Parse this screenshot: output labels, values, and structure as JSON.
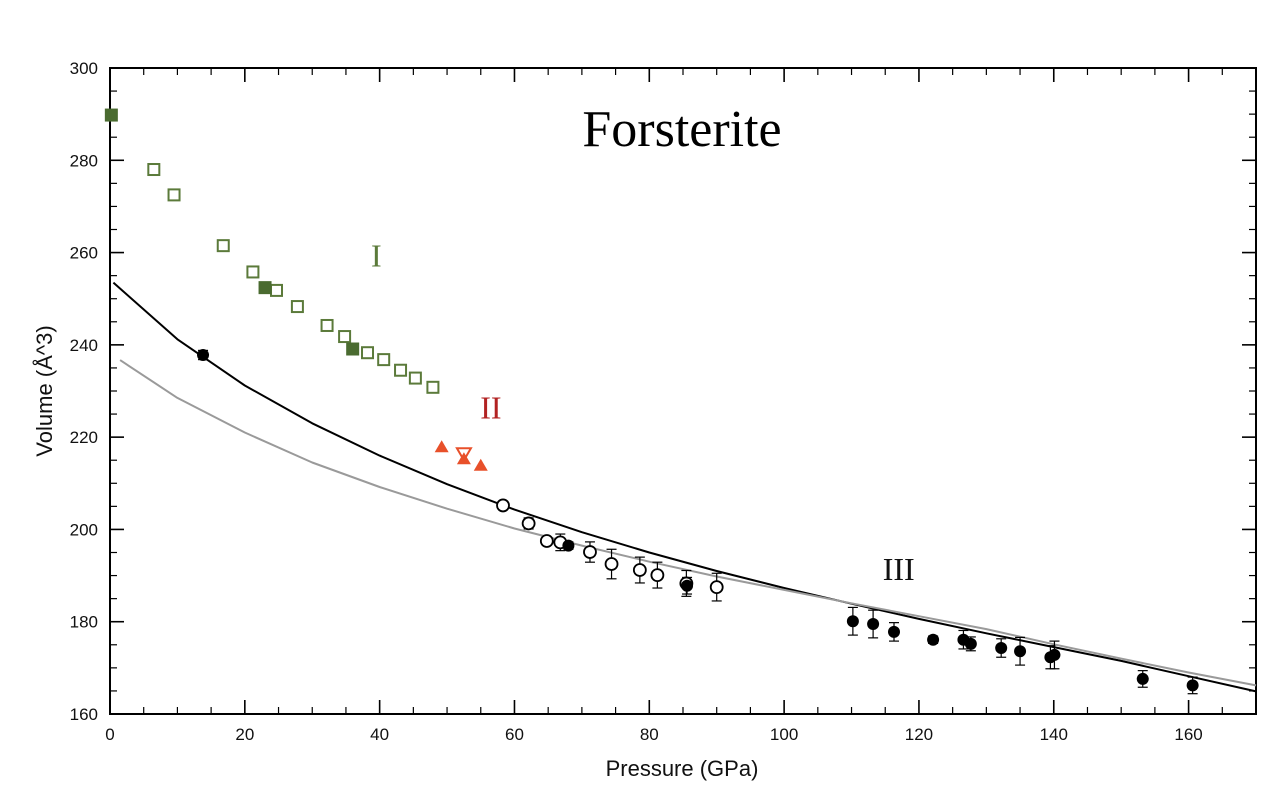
{
  "chart_data": {
    "type": "scatter",
    "title": "Forsterite",
    "xlabel": "Pressure (GPa)",
    "ylabel": "Volume (Å^3)",
    "xlim": [
      0,
      170
    ],
    "ylim": [
      160,
      300
    ],
    "x_ticks": [
      0,
      20,
      40,
      60,
      80,
      100,
      120,
      140,
      160
    ],
    "x_tick_labels": [
      "0",
      "20",
      "40",
      "60",
      "80",
      "100",
      "120",
      "140",
      "160"
    ],
    "y_ticks": [
      160,
      180,
      200,
      220,
      240,
      260,
      280,
      300
    ],
    "y_tick_labels": [
      "160",
      "180",
      "200",
      "220",
      "240",
      "260",
      "280",
      "300"
    ],
    "grid": false,
    "legend": "none",
    "annotations": [
      {
        "text": "I",
        "x": 39.5,
        "y": 257,
        "color": "#5b7a3a"
      },
      {
        "text": "II",
        "x": 56.5,
        "y": 224,
        "color": "#b22222"
      },
      {
        "text": "III",
        "x": 117,
        "y": 189,
        "color": "#111111"
      }
    ],
    "series": [
      {
        "marker": "open-square",
        "color": "#5b7a3a",
        "points": [
          [
            6.5,
            278
          ],
          [
            9.5,
            272.5
          ],
          [
            16.8,
            261.5
          ],
          [
            21.2,
            255.8
          ],
          [
            24.7,
            251.8
          ],
          [
            27.8,
            248.3
          ],
          [
            32.2,
            244.2
          ],
          [
            34.8,
            241.8
          ],
          [
            38.2,
            238.3
          ],
          [
            40.6,
            236.8
          ],
          [
            43.1,
            234.5
          ],
          [
            45.3,
            232.8
          ],
          [
            47.9,
            230.8
          ]
        ]
      },
      {
        "marker": "filled-square",
        "color": "#4a6b30",
        "points": [
          [
            0.2,
            289.8
          ],
          [
            23,
            252.4
          ],
          [
            36,
            239.1
          ]
        ]
      },
      {
        "marker": "filled-triangle",
        "color": "#e8502a",
        "points": [
          [
            49.2,
            217.8
          ],
          [
            52.5,
            215.2
          ],
          [
            55,
            213.8
          ]
        ]
      },
      {
        "marker": "open-triangle-down",
        "color": "#e8502a",
        "points": [
          [
            52.5,
            216.5
          ]
        ]
      },
      {
        "marker": "open-circle",
        "color": "#000000",
        "points": [
          [
            58.3,
            205.2
          ],
          [
            62.1,
            201.3
          ],
          [
            64.8,
            197.5
          ],
          [
            66.8,
            197.2
          ],
          [
            71.2,
            195.1
          ],
          [
            74.4,
            192.5
          ],
          [
            78.6,
            191.2
          ],
          [
            81.2,
            190.1
          ],
          [
            85.5,
            188.3
          ],
          [
            90,
            187.5
          ]
        ],
        "errors": [
          0.8,
          1.2,
          0.8,
          1.8,
          2.2,
          3.2,
          2.8,
          2.8,
          2.8,
          3.0
        ]
      },
      {
        "marker": "filled-circle",
        "color": "#000000",
        "points": [
          [
            13.8,
            237.8
          ],
          [
            68,
            196.5
          ],
          [
            85.6,
            187.8
          ],
          [
            110.2,
            180.1
          ],
          [
            113.2,
            179.5
          ],
          [
            116.3,
            177.8
          ],
          [
            122.1,
            176.1
          ],
          [
            126.6,
            176.1
          ],
          [
            127.7,
            175.2
          ],
          [
            132.2,
            174.3
          ],
          [
            135,
            173.6
          ],
          [
            139.5,
            172.3
          ],
          [
            140.1,
            172.8
          ],
          [
            153.2,
            167.6
          ],
          [
            160.6,
            166.2
          ]
        ],
        "errors": [
          1.0,
          0.8,
          1.8,
          3.0,
          3.0,
          2.0,
          0.8,
          2.0,
          1.5,
          2.0,
          3.0,
          2.5,
          3.0,
          1.8,
          1.8
        ]
      },
      {
        "type": "line",
        "color": "#000000",
        "points": [
          [
            0.5,
            253.5
          ],
          [
            10,
            241.2
          ],
          [
            20,
            231.2
          ],
          [
            30,
            223.0
          ],
          [
            40,
            216.0
          ],
          [
            50,
            209.8
          ],
          [
            60,
            204.3
          ],
          [
            70,
            199.4
          ],
          [
            80,
            195.0
          ],
          [
            90,
            191.0
          ],
          [
            100,
            187.3
          ],
          [
            110,
            183.9
          ],
          [
            120,
            180.6
          ],
          [
            130,
            177.5
          ],
          [
            140,
            174.5
          ],
          [
            150,
            171.5
          ],
          [
            160,
            168.2
          ],
          [
            170,
            164.9
          ]
        ]
      },
      {
        "type": "line",
        "color": "#9a9a9a",
        "points": [
          [
            1.5,
            236.7
          ],
          [
            10,
            228.5
          ],
          [
            20,
            221.0
          ],
          [
            30,
            214.5
          ],
          [
            40,
            209.2
          ],
          [
            50,
            204.5
          ],
          [
            60,
            200.2
          ],
          [
            70,
            196.5
          ],
          [
            80,
            193.0
          ],
          [
            90,
            189.8
          ],
          [
            100,
            186.9
          ],
          [
            110,
            184.0
          ],
          [
            120,
            181.2
          ],
          [
            130,
            178.4
          ],
          [
            140,
            175.1
          ],
          [
            150,
            172.0
          ],
          [
            160,
            169.0
          ],
          [
            170,
            166.2
          ]
        ]
      }
    ]
  }
}
